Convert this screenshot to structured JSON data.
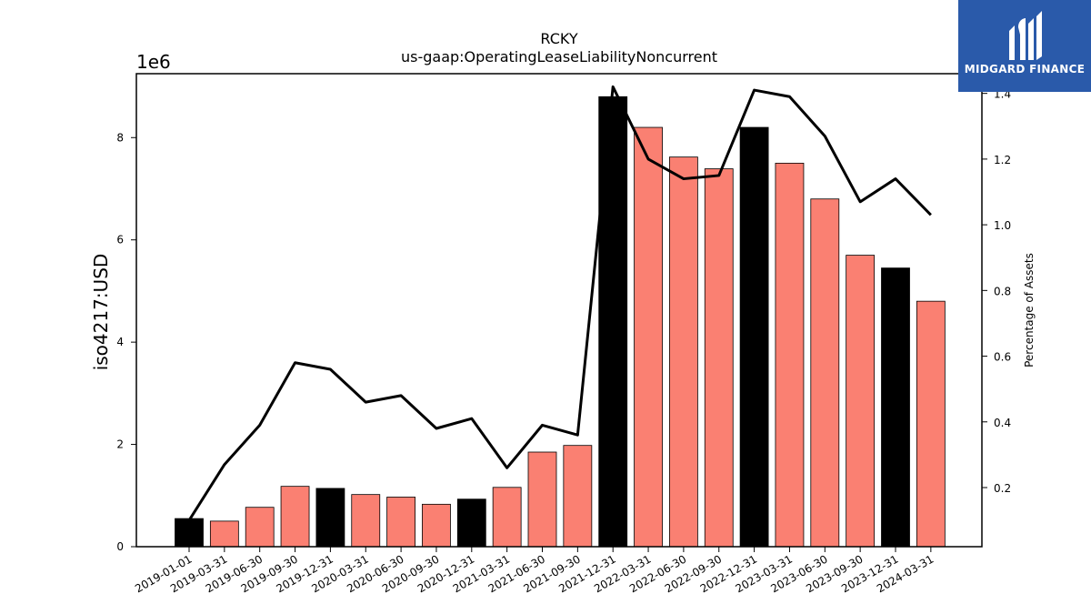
{
  "brand": {
    "name": "MIDGARD FINANCE",
    "bg_color": "#2a5aaa"
  },
  "chart_data": {
    "type": "bar",
    "title": "RCKY",
    "subtitle": "us-gaap:OperatingLeaseLiabilityNoncurrent",
    "ylabel": "iso4217:USD",
    "y_offset_label": "1e6",
    "y2label": "Percentage of Assets",
    "ylim": [
      0,
      9.25
    ],
    "y2lim": [
      0.02,
      1.46
    ],
    "yticks": [
      0,
      2,
      4,
      6,
      8
    ],
    "y2ticks": [
      0.2,
      0.4,
      0.6,
      0.8,
      1.0,
      1.2,
      1.4
    ],
    "categories": [
      "2019-01-01",
      "2019-03-31",
      "2019-06-30",
      "2019-09-30",
      "2019-12-31",
      "2020-03-31",
      "2020-06-30",
      "2020-09-30",
      "2020-12-31",
      "2021-03-31",
      "2021-06-30",
      "2021-09-30",
      "2021-12-31",
      "2022-03-31",
      "2022-06-30",
      "2022-09-30",
      "2022-12-31",
      "2023-03-31",
      "2023-06-30",
      "2023-09-30",
      "2023-12-31",
      "2024-03-31"
    ],
    "series": [
      {
        "type": "bar",
        "values": [
          0.55,
          0.5,
          0.77,
          1.18,
          1.14,
          1.02,
          0.97,
          0.83,
          0.93,
          1.16,
          1.85,
          1.98,
          8.8,
          8.2,
          7.62,
          7.39,
          8.2,
          7.5,
          6.8,
          5.7,
          5.45,
          4.8
        ]
      },
      {
        "type": "line",
        "axis": "right",
        "values": [
          0.1,
          0.27,
          0.39,
          0.58,
          0.56,
          0.46,
          0.48,
          0.38,
          0.41,
          0.26,
          0.39,
          0.36,
          1.42,
          1.2,
          1.14,
          1.15,
          1.41,
          1.39,
          1.27,
          1.07,
          1.14,
          1.03
        ]
      }
    ],
    "bar_colors": {
      "year_end": "#000000",
      "quarter": "#fa8072"
    },
    "bar_color_pattern": [
      "year_end",
      "quarter",
      "quarter",
      "quarter",
      "year_end",
      "quarter",
      "quarter",
      "quarter",
      "year_end",
      "quarter",
      "quarter",
      "quarter",
      "year_end",
      "quarter",
      "quarter",
      "quarter",
      "year_end",
      "quarter",
      "quarter",
      "quarter",
      "year_end",
      "quarter"
    ],
    "line_color": "#000000",
    "grid": false,
    "legend": "none"
  }
}
